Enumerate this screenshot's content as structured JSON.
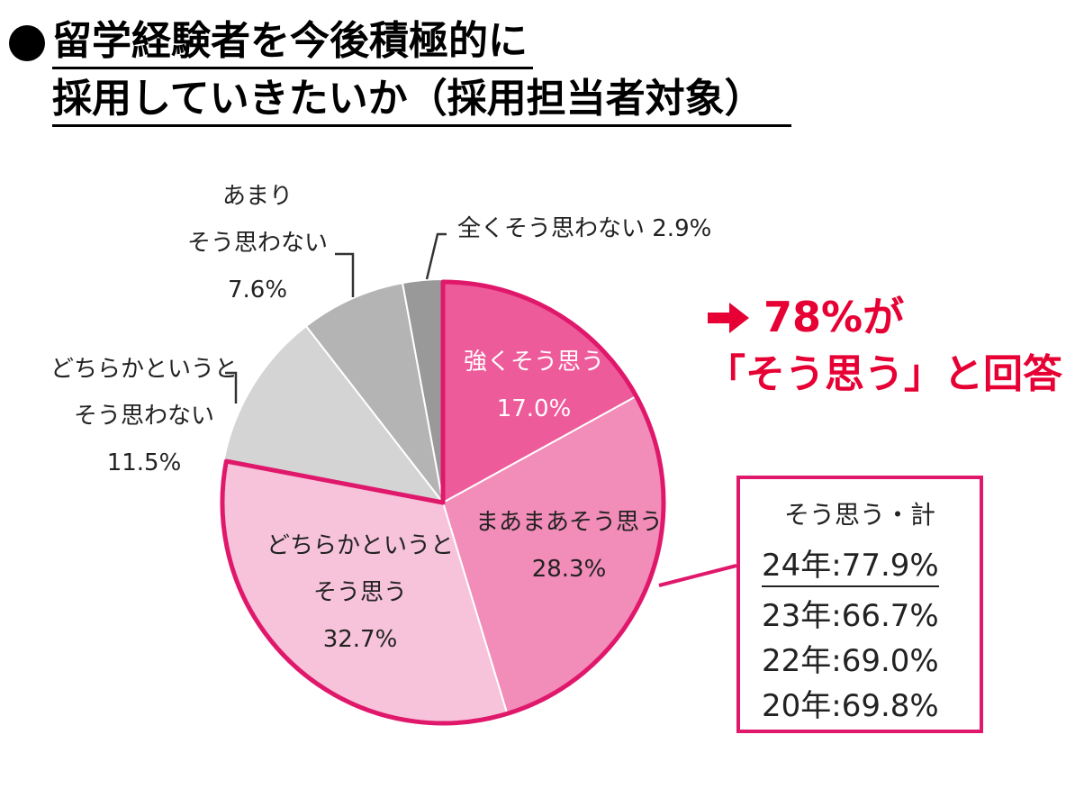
{
  "title": {
    "line1": "留学経験者を今後積極的に",
    "line2": "採用していきたいか（採用担当者対象）"
  },
  "chart_data": {
    "type": "pie",
    "start": "12 o'clock",
    "direction": "clockwise",
    "slices": [
      {
        "lines": [
          "強くそう思う",
          "17.0%"
        ],
        "value": 17.0,
        "color": "#ee5b9a",
        "highlight": true
      },
      {
        "lines": [
          "まあまあそう思う",
          "28.3%"
        ],
        "value": 28.3,
        "color": "#f28cb8",
        "highlight": true
      },
      {
        "lines": [
          "どちらかというと",
          "そう思う",
          "32.7%"
        ],
        "value": 32.7,
        "color": "#f7c3da",
        "highlight": true
      },
      {
        "lines": [
          "どちらかというと",
          "そう思わない",
          "11.5%"
        ],
        "value": 11.5,
        "color": "#d4d4d4",
        "highlight": false
      },
      {
        "lines": [
          "あまり",
          "そう思わない",
          "7.6%"
        ],
        "value": 7.6,
        "color": "#b4b4b4",
        "highlight": false
      },
      {
        "lines": [
          "全くそう思わない 2.9%"
        ],
        "value": 2.9,
        "color": "#999999",
        "highlight": false
      }
    ],
    "highlight_color": "#e0186c"
  },
  "callout": {
    "line1": "78%が",
    "line2": "「そう思う」と回答",
    "color": "#e60033"
  },
  "summary": {
    "title": "そう思う・計",
    "rows": [
      "24年:77.9%",
      "23年:66.7%",
      "22年:69.0%",
      "20年:69.8%"
    ]
  }
}
